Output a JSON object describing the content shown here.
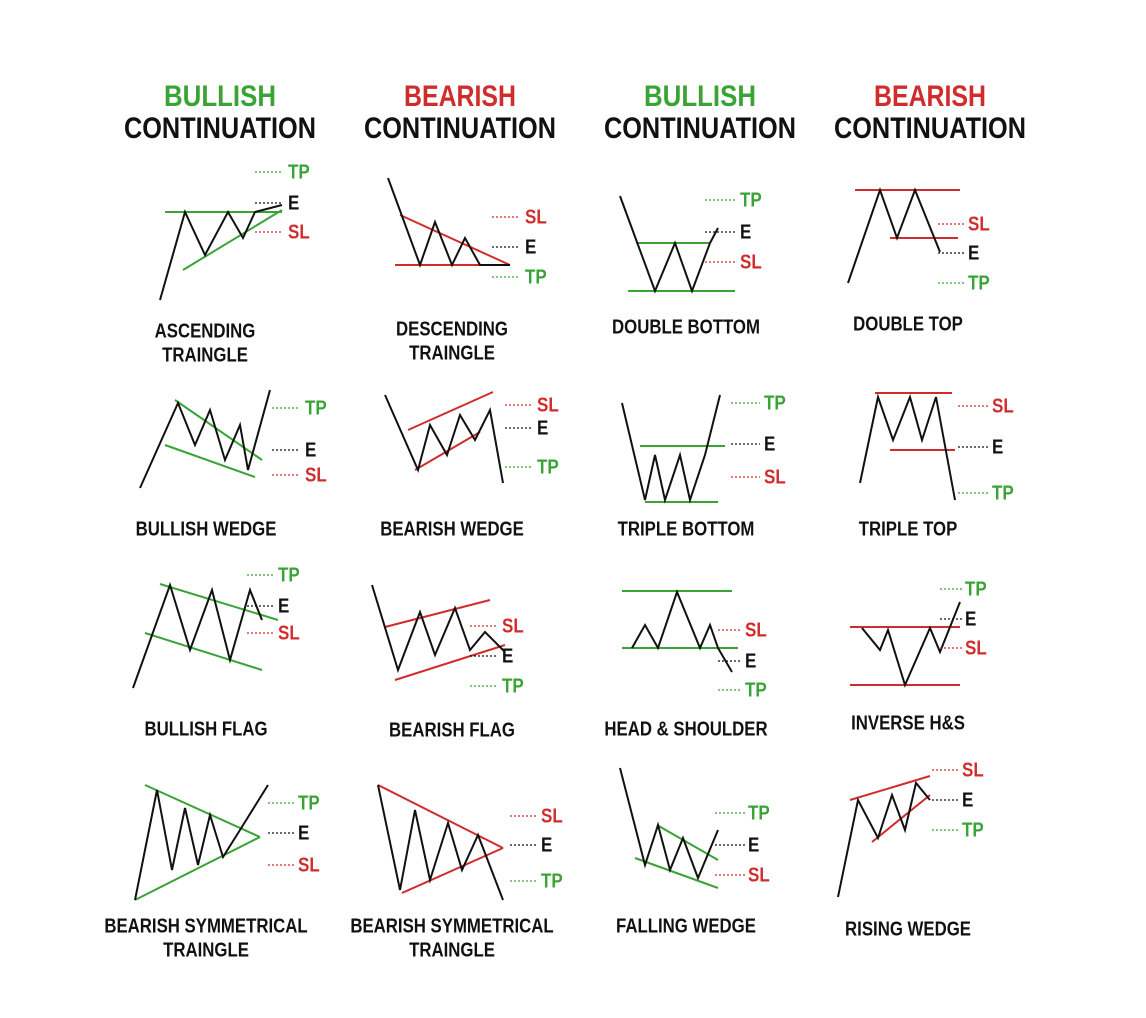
{
  "header": {
    "columns": [
      {
        "sentiment": "BULLISH",
        "color": "#3aa335",
        "label": "CONTINUATION"
      },
      {
        "sentiment": "BEARISH",
        "color": "#d12c2c",
        "label": "CONTINUATION"
      },
      {
        "sentiment": "BULLISH",
        "color": "#3aa335",
        "label": "CONTINUATION"
      },
      {
        "sentiment": "BEARISH",
        "color": "#d12c2c",
        "label": "CONTINUATION"
      }
    ]
  },
  "patterns": [
    {
      "name": [
        "ASCENDING",
        "TRAINGLE"
      ],
      "labels": [
        {
          "text": "TP",
          "color": "#3aa335"
        },
        {
          "text": "E",
          "color": "#111"
        },
        {
          "text": "SL",
          "color": "#d12c2c"
        }
      ]
    },
    {
      "name": [
        "DESCENDING",
        "TRAINGLE"
      ],
      "labels": [
        {
          "text": "SL",
          "color": "#d12c2c"
        },
        {
          "text": "E",
          "color": "#111"
        },
        {
          "text": "TP",
          "color": "#3aa335"
        }
      ]
    },
    {
      "name": [
        "DOUBLE BOTTOM"
      ],
      "labels": [
        {
          "text": "TP",
          "color": "#3aa335"
        },
        {
          "text": "E",
          "color": "#111"
        },
        {
          "text": "SL",
          "color": "#d12c2c"
        }
      ]
    },
    {
      "name": [
        "DOUBLE TOP"
      ],
      "labels": [
        {
          "text": "SL",
          "color": "#d12c2c"
        },
        {
          "text": "E",
          "color": "#111"
        },
        {
          "text": "TP",
          "color": "#3aa335"
        }
      ]
    },
    {
      "name": [
        "BULLISH WEDGE"
      ],
      "labels": [
        {
          "text": "TP",
          "color": "#3aa335"
        },
        {
          "text": "E",
          "color": "#111"
        },
        {
          "text": "SL",
          "color": "#d12c2c"
        }
      ]
    },
    {
      "name": [
        "BEARISH WEDGE"
      ],
      "labels": [
        {
          "text": "SL",
          "color": "#d12c2c"
        },
        {
          "text": "E",
          "color": "#111"
        },
        {
          "text": "TP",
          "color": "#3aa335"
        }
      ]
    },
    {
      "name": [
        "TRIPLE BOTTOM"
      ],
      "labels": [
        {
          "text": "TP",
          "color": "#3aa335"
        },
        {
          "text": "E",
          "color": "#111"
        },
        {
          "text": "SL",
          "color": "#d12c2c"
        }
      ]
    },
    {
      "name": [
        "TRIPLE TOP"
      ],
      "labels": [
        {
          "text": "SL",
          "color": "#d12c2c"
        },
        {
          "text": "E",
          "color": "#111"
        },
        {
          "text": "TP",
          "color": "#3aa335"
        }
      ]
    },
    {
      "name": [
        "BULLISH FLAG"
      ],
      "labels": [
        {
          "text": "TP",
          "color": "#3aa335"
        },
        {
          "text": "E",
          "color": "#111"
        },
        {
          "text": "SL",
          "color": "#d12c2c"
        }
      ]
    },
    {
      "name": [
        "BEARISH FLAG"
      ],
      "labels": [
        {
          "text": "SL",
          "color": "#d12c2c"
        },
        {
          "text": "E",
          "color": "#111"
        },
        {
          "text": "TP",
          "color": "#3aa335"
        }
      ]
    },
    {
      "name": [
        "HEAD & SHOULDER"
      ],
      "labels": [
        {
          "text": "SL",
          "color": "#d12c2c"
        },
        {
          "text": "E",
          "color": "#111"
        },
        {
          "text": "TP",
          "color": "#3aa335"
        }
      ]
    },
    {
      "name": [
        "INVERSE H&S"
      ],
      "labels": [
        {
          "text": "TP",
          "color": "#3aa335"
        },
        {
          "text": "E",
          "color": "#111"
        },
        {
          "text": "SL",
          "color": "#d12c2c"
        }
      ]
    },
    {
      "name": [
        "BEARISH SYMMETRICAL",
        "TRAINGLE"
      ],
      "labels": [
        {
          "text": "TP",
          "color": "#3aa335"
        },
        {
          "text": "E",
          "color": "#111"
        },
        {
          "text": "SL",
          "color": "#d12c2c"
        }
      ]
    },
    {
      "name": [
        "BEARISH SYMMETRICAL",
        "TRAINGLE"
      ],
      "labels": [
        {
          "text": "SL",
          "color": "#d12c2c"
        },
        {
          "text": "E",
          "color": "#111"
        },
        {
          "text": "TP",
          "color": "#3aa335"
        }
      ]
    },
    {
      "name": [
        "FALLING WEDGE"
      ],
      "labels": [
        {
          "text": "TP",
          "color": "#3aa335"
        },
        {
          "text": "E",
          "color": "#111"
        },
        {
          "text": "SL",
          "color": "#d12c2c"
        }
      ]
    },
    {
      "name": [
        "RISING WEDGE"
      ],
      "labels": [
        {
          "text": "SL",
          "color": "#d12c2c"
        },
        {
          "text": "E",
          "color": "#111"
        },
        {
          "text": "TP",
          "color": "#3aa335"
        }
      ]
    }
  ]
}
